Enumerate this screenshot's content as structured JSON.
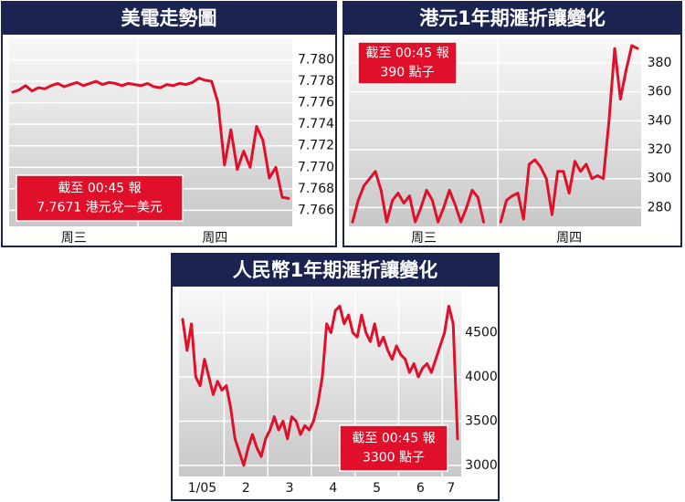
{
  "chart_data": [
    {
      "type": "line",
      "title": "美電走勢圖",
      "color": "#e0102a",
      "grid": true,
      "categories": [
        "周三",
        "周四"
      ],
      "values": [
        [
          7.777,
          7.7772,
          7.7776,
          7.7771,
          7.7774,
          7.7773,
          7.7776,
          7.7778,
          7.7775,
          7.7777,
          7.7779,
          7.7776,
          7.7778,
          7.778,
          7.7777,
          7.7779,
          7.7778,
          7.7776,
          7.7778,
          7.7777
        ],
        [
          7.7776,
          7.7778,
          7.7775,
          7.7774,
          7.7777,
          7.7776,
          7.7778,
          7.7777,
          7.7779,
          7.7783,
          7.7781,
          7.778,
          7.776,
          7.7702,
          7.7735,
          7.7698,
          7.7715,
          7.77,
          7.7738,
          7.7725,
          7.769,
          7.77,
          7.7672,
          7.7671
        ]
      ],
      "ylim": [
        7.7645,
        7.782
      ],
      "yticks": [
        7.766,
        7.768,
        {
          "value": 7.77,
          "label": "7.770"
        },
        7.772,
        7.774,
        7.776,
        7.778,
        {
          "value": 7.78,
          "label": "7.780"
        }
      ],
      "annotation": [
        "截至 00:45 報",
        "7.7671 港元兌一美元"
      ]
    },
    {
      "type": "line",
      "title": "港元1年期滙折讓變化",
      "color": "#e0102a",
      "grid": true,
      "categories": [
        "周三",
        "周四"
      ],
      "values": [
        [
          270,
          285,
          295,
          300,
          305,
          292,
          270,
          285,
          290,
          283,
          288,
          270,
          280,
          292,
          285,
          270,
          280,
          292,
          282,
          270,
          280,
          292,
          287,
          270,
          null,
          null
        ],
        [
          270,
          285,
          288,
          290,
          272,
          310,
          313,
          308,
          300,
          275,
          305,
          305,
          290,
          312,
          305,
          310,
          300,
          302,
          300,
          340,
          390,
          355,
          375,
          392,
          390
        ]
      ],
      "ylim": [
        267,
        397
      ],
      "yticks": [
        280,
        300,
        320,
        340,
        360,
        380
      ],
      "annotation": [
        "截至 00:45 報",
        "390 點子"
      ]
    },
    {
      "type": "line",
      "title": "人民幣1年期滙折讓變化",
      "color": "#e0102a",
      "grid": true,
      "categories": [
        "1/05",
        "2",
        "3",
        "4",
        "5",
        "6",
        "7"
      ],
      "values": [
        [
          4650,
          4300,
          4600,
          4000,
          3900,
          4200,
          4000,
          3800,
          3950,
          3850
        ],
        [
          3900,
          3650,
          3300,
          3150,
          3000,
          3200,
          3350,
          3200,
          3100,
          3300
        ],
        [
          3400,
          3550,
          3400,
          3500,
          3300,
          3550,
          3500,
          3350,
          3450,
          3400
        ],
        [
          3500,
          3700,
          4000,
          4600,
          4500,
          4750,
          4800,
          4600,
          4700,
          4500
        ],
        [
          4450,
          4700,
          4500,
          4400,
          4600,
          4350,
          4450,
          4300,
          4200,
          4350
        ],
        [
          4250,
          4200,
          4050,
          4150,
          4000,
          4100,
          4150,
          4050,
          4200,
          4350
        ],
        [
          4500,
          4800,
          4600,
          3300
        ]
      ],
      "ylim": [
        2875,
        5000
      ],
      "yticks": [
        3000,
        3500,
        4000,
        4500
      ],
      "annotation": [
        "截至 00:45 報",
        "3300 點子"
      ]
    }
  ]
}
